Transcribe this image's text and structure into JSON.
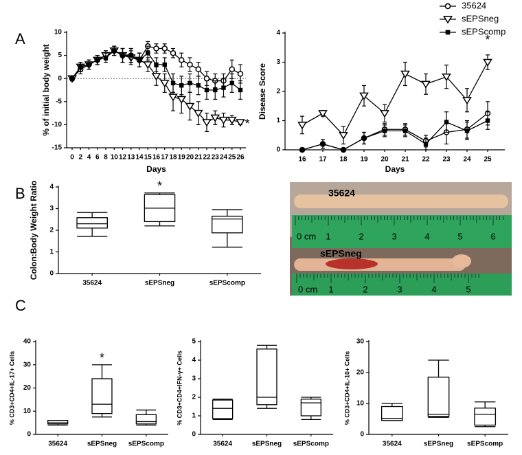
{
  "panels": [
    "A",
    "B",
    "C"
  ],
  "chart_data": [
    {
      "type": "line",
      "x_label": "Days",
      "y_label": "% of initial body weight",
      "categories": [
        "0",
        "2",
        "4",
        "6",
        "8",
        "10",
        "12",
        "13",
        "14",
        "15",
        "16",
        "17",
        "18",
        "19",
        "20",
        "21",
        "22",
        "23",
        "24",
        "25",
        "26"
      ],
      "ylim": [
        -15,
        10
      ],
      "yticks": [
        -15,
        -10,
        -5,
        0,
        5,
        10
      ],
      "zero_line": true,
      "legend": "top-right",
      "series": [
        {
          "name": "35624",
          "marker": "circle-open",
          "color": "#000000",
          "values": [
            0,
            2,
            3,
            4,
            5,
            6,
            5,
            5,
            4,
            7,
            6.5,
            6.5,
            5.5,
            4,
            3,
            2,
            0,
            -0.5,
            -0.5,
            2,
            1
          ],
          "errors": [
            0.5,
            1,
            1,
            1,
            1,
            1,
            1.5,
            1.5,
            1.5,
            1,
            1,
            1,
            1,
            1.5,
            1.5,
            1.5,
            1.5,
            1.5,
            1.5,
            2,
            2
          ]
        },
        {
          "name": "sEPSneg",
          "marker": "triangle-open",
          "color": "#000000",
          "values": [
            0,
            2.5,
            3,
            4,
            5,
            6,
            5,
            4.5,
            4,
            3,
            0.5,
            -1,
            -4,
            -4.5,
            -6,
            -7.5,
            -9.5,
            -8.5,
            -9,
            -9,
            -9.5
          ],
          "errors": [
            0.5,
            1,
            1,
            1,
            1,
            1,
            1.5,
            1.5,
            1.5,
            1.5,
            2,
            2,
            3,
            3,
            3,
            2.5,
            2,
            1.5,
            1.5,
            1,
            0.5
          ]
        },
        {
          "name": "sEPScomp",
          "marker": "square",
          "color": "#000000",
          "values": [
            0,
            2.5,
            3,
            4,
            4.5,
            6,
            5,
            5,
            4,
            5.5,
            3,
            3,
            -1,
            -1.5,
            -1,
            -1.5,
            -2.5,
            -2.5,
            -2,
            -1,
            -2.5
          ],
          "errors": [
            0.5,
            1,
            1,
            1,
            1,
            1,
            1.5,
            1.5,
            1.5,
            1.5,
            1.5,
            1.5,
            2,
            2,
            2,
            2,
            2,
            2,
            2,
            2,
            2
          ]
        }
      ],
      "annotations": [
        {
          "text": "*",
          "x": "26",
          "y": -9.5
        }
      ]
    },
    {
      "type": "line",
      "x_label": "Days",
      "y_label": "Disease Score",
      "categories": [
        "16",
        "17",
        "18",
        "19",
        "20",
        "21",
        "22",
        "23",
        "24",
        "25"
      ],
      "ylim": [
        0,
        4
      ],
      "yticks": [
        0,
        1,
        2,
        3,
        4
      ],
      "series": [
        {
          "marker": "circle-open",
          "color": "#000000",
          "values": [
            0,
            0.2,
            0,
            0.4,
            0.7,
            0.7,
            0.3,
            0.6,
            0.7,
            1.25
          ],
          "errors": [
            0,
            0.15,
            0,
            0.2,
            0.2,
            0.2,
            0.2,
            0.4,
            0.3,
            0.4
          ]
        },
        {
          "marker": "triangle-open",
          "color": "#000000",
          "values": [
            0.85,
            1.25,
            0.5,
            1.85,
            1.25,
            2.6,
            2.25,
            2.5,
            1.7,
            3.0
          ],
          "errors": [
            0.3,
            0.1,
            0.3,
            0.35,
            0.3,
            0.4,
            0.35,
            0.4,
            0.4,
            0.25
          ]
        },
        {
          "marker": "square",
          "color": "#000000",
          "values": [
            0,
            0.2,
            0,
            0.4,
            0.65,
            0.65,
            0.2,
            0.95,
            0.65,
            1.0
          ],
          "errors": [
            0,
            0.15,
            0,
            0.2,
            0.2,
            0.2,
            0.2,
            0.35,
            0.3,
            0.3
          ]
        }
      ],
      "annotations": [
        {
          "text": "*",
          "x": "25",
          "y": 3.6
        }
      ]
    },
    {
      "type": "box",
      "y_label": "Colon:Body Weight Ratio",
      "categories": [
        "35624",
        "sEPSneg",
        "sEPScomp"
      ],
      "ylim": [
        0,
        4
      ],
      "yticks": [
        0,
        1,
        2,
        3,
        4
      ],
      "boxes": [
        {
          "min": 1.72,
          "q1": 2.1,
          "median": 2.3,
          "q3": 2.58,
          "max": 2.82
        },
        {
          "min": 2.2,
          "q1": 2.4,
          "median": 3.02,
          "q3": 3.65,
          "max": 3.72
        },
        {
          "min": 1.22,
          "q1": 1.88,
          "median": 2.52,
          "q3": 2.65,
          "max": 2.95
        }
      ],
      "annotations": [
        {
          "text": "*",
          "x": "sEPSneg"
        }
      ]
    },
    {
      "type": "box",
      "y_label": "% CD3+CD4+IL-17+ Cells",
      "categories": [
        "35624",
        "sEPSneg",
        "sEPScomp"
      ],
      "ylim": [
        0,
        40
      ],
      "yticks": [
        0,
        10,
        20,
        30,
        40
      ],
      "boxes": [
        {
          "min": 4,
          "q1": 4.5,
          "median": 5,
          "q3": 6,
          "max": 6
        },
        {
          "min": 7.5,
          "q1": 9,
          "median": 13,
          "q3": 24,
          "max": 30
        },
        {
          "min": 4,
          "q1": 4.5,
          "median": 5.5,
          "q3": 8.5,
          "max": 10.5
        }
      ],
      "annotations": [
        {
          "text": "*",
          "x": "sEPSneg"
        }
      ]
    },
    {
      "type": "box",
      "y_label": "% CD3+CD4+IFN-γ+ Cells",
      "categories": [
        "35624",
        "sEPSneg",
        "sEPScomp"
      ],
      "ylim": [
        0,
        5
      ],
      "yticks": [
        0,
        1,
        2,
        3,
        4,
        5
      ],
      "boxes": [
        {
          "min": 0.8,
          "q1": 0.85,
          "median": 1.4,
          "q3": 1.85,
          "max": 1.9
        },
        {
          "min": 1.4,
          "q1": 1.6,
          "median": 2.0,
          "q3": 4.6,
          "max": 4.8
        },
        {
          "min": 0.8,
          "q1": 1.0,
          "median": 1.7,
          "q3": 1.9,
          "max": 2.0
        }
      ]
    },
    {
      "type": "box",
      "y_label": "% CD3+CD4+IL-10+ Cells",
      "categories": [
        "35624",
        "sEPSneg",
        "sEPScomp"
      ],
      "ylim": [
        0,
        30
      ],
      "yticks": [
        0,
        10,
        20,
        30
      ],
      "boxes": [
        {
          "min": 4.5,
          "q1": 4.5,
          "median": 5.2,
          "q3": 9,
          "max": 10
        },
        {
          "min": 5.5,
          "q1": 5.8,
          "median": 6.5,
          "q3": 18.5,
          "max": 24
        },
        {
          "min": 2.5,
          "q1": 3,
          "median": 6.5,
          "q3": 8.5,
          "max": 10.5
        }
      ]
    }
  ],
  "photo": {
    "specimens": [
      "35624",
      "sEPSneg"
    ],
    "ruler_labels": [
      [
        "0 cm",
        "1",
        "2",
        "3",
        "4",
        "5",
        "6"
      ],
      [
        "0 cm",
        "1",
        "2",
        "3",
        "4",
        "5"
      ]
    ]
  }
}
